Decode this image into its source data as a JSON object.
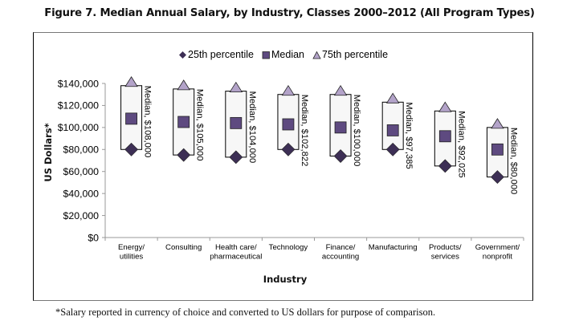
{
  "page": {
    "title": "Figure 7. Median Annual Salary, by Industry, Classes 2000–2012 (All Program Types)",
    "footnote": "*Salary reported in currency of choice and converted to US dollars for purpose of comparison."
  },
  "chart_data": {
    "type": "scatter",
    "subtype": "range-with-median (high-low-close style)",
    "title": "Figure 7. Median Annual Salary, by Industry, Classes 2000–2012 (All Program Types)",
    "xlabel": "Industry",
    "ylabel": "US Dollars*",
    "ylim": [
      0,
      140000
    ],
    "y_ticks": [
      0,
      20000,
      40000,
      60000,
      80000,
      100000,
      120000,
      140000
    ],
    "y_tick_labels": [
      "$0",
      "$20,000",
      "$40,000",
      "$60,000",
      "$80,000",
      "$100,000",
      "$120,000",
      "$140,000"
    ],
    "grid": false,
    "legend_position": "top-center",
    "legend": [
      {
        "name": "25th percentile",
        "marker": "diamond",
        "color": "#3d2f55"
      },
      {
        "name": "Median",
        "marker": "square",
        "color": "#5e4a80"
      },
      {
        "name": "75th percentile",
        "marker": "triangle",
        "color": "#b3a3c9"
      }
    ],
    "categories": [
      [
        "Energy/",
        "utilities"
      ],
      [
        "Consulting"
      ],
      [
        "Health care/",
        "pharmaceutical"
      ],
      [
        "Technology"
      ],
      [
        "Finance/",
        "accounting"
      ],
      [
        "Manufacturing"
      ],
      [
        "Products/",
        "services"
      ],
      [
        "Government/",
        "nonprofit"
      ]
    ],
    "series": [
      {
        "name": "25th percentile",
        "values": [
          80000,
          75000,
          73000,
          80000,
          74000,
          80000,
          65000,
          55000
        ]
      },
      {
        "name": "Median",
        "values": [
          108000,
          105000,
          104000,
          102822,
          100000,
          97385,
          92025,
          80000
        ]
      },
      {
        "name": "75th percentile",
        "values": [
          138000,
          135000,
          133000,
          130000,
          130000,
          123000,
          115000,
          100000
        ]
      }
    ],
    "data_labels": [
      "Median, $108,000",
      "Median, $105,000",
      "Median, $104,000",
      "Median, $102,822",
      "Median, $100,000",
      "Median, $97,385",
      "Median, $92,025",
      "Median, $80,000"
    ],
    "colors": {
      "box_fill": "#f7f7f7",
      "box_stroke": "#000000",
      "axis": "#999999"
    }
  }
}
